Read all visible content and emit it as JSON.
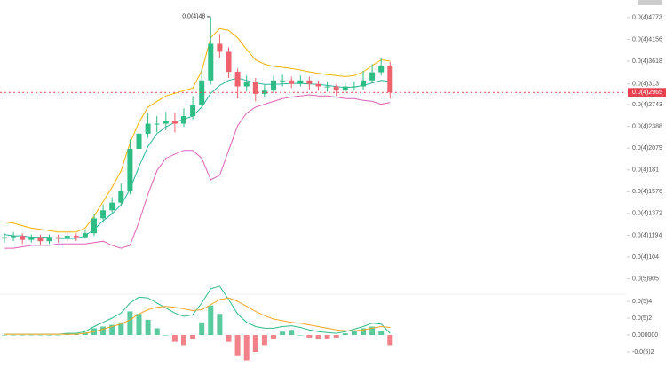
{
  "chart_data": [
    {
      "type": "candlestick",
      "log": true,
      "open": [
        1.17e-05,
        1.18e-05,
        1.19e-05,
        1.16e-05,
        1.18e-05,
        1.15e-05,
        1.18e-05,
        1.17e-05,
        1.19e-05,
        1.18e-05,
        1.21e-05,
        1.33e-05,
        1.4e-05,
        1.47e-05,
        1.58e-05,
        2.07e-05,
        2.28e-05,
        2.43e-05,
        2.43e-05,
        2.48e-05,
        2.43e-05,
        2.55e-05,
        2.73e-05,
        3.2e-05,
        4.04e-05,
        3.84e-05,
        3.38e-05,
        3.08e-05,
        3.17e-05,
        2.94e-05,
        3e-05,
        3.2e-05,
        3.2e-05,
        3.13e-05,
        3.2e-05,
        3.13e-05,
        3.08e-05,
        3.08e-05,
        3e-05,
        3.08e-05,
        3.08e-05,
        3.2e-05,
        3.37e-05,
        3.52e-05
      ],
      "high": [
        1.21e-05,
        1.22e-05,
        1.21e-05,
        1.2e-05,
        1.2e-05,
        1.2e-05,
        1.2e-05,
        1.22e-05,
        1.21e-05,
        1.24e-05,
        1.37e-05,
        1.45e-05,
        1.52e-05,
        1.66e-05,
        2.2e-05,
        2.4e-05,
        2.6e-05,
        2.55e-05,
        2.62e-05,
        2.6e-05,
        2.68e-05,
        2.9e-05,
        3.45e-05,
        4.8e-05,
        4.3e-05,
        3.95e-05,
        3.45e-05,
        3.3e-05,
        3.25e-05,
        3.12e-05,
        3.3e-05,
        3.32e-05,
        3.28e-05,
        3.3e-05,
        3.28e-05,
        3.2e-05,
        3.18e-05,
        3.12e-05,
        3.15e-05,
        3.18e-05,
        3.4e-05,
        3.55e-05,
        3.68e-05,
        3.6e-05
      ],
      "low": [
        1.14e-05,
        1.15e-05,
        1.13e-05,
        1.14e-05,
        1.12e-05,
        1.13e-05,
        1.14e-05,
        1.15e-05,
        1.15e-05,
        1.17e-05,
        1.19e-05,
        1.3e-05,
        1.37e-05,
        1.44e-05,
        1.55e-05,
        1.95e-05,
        2.22e-05,
        2.3e-05,
        2.33e-05,
        2.3e-05,
        2.38e-05,
        2.5e-05,
        2.68e-05,
        3.12e-05,
        3.7e-05,
        3.25e-05,
        2.85e-05,
        2.98e-05,
        2.8e-05,
        2.88e-05,
        2.95e-05,
        3.08e-05,
        3.05e-05,
        3.08e-05,
        3.02e-05,
        3e-05,
        2.98e-05,
        2.9e-05,
        2.95e-05,
        3e-05,
        3.02e-05,
        3.15e-05,
        3.3e-05,
        2.85e-05
      ],
      "close": [
        1.18e-05,
        1.19e-05,
        1.16e-05,
        1.18e-05,
        1.15e-05,
        1.18e-05,
        1.17e-05,
        1.19e-05,
        1.18e-05,
        1.21e-05,
        1.33e-05,
        1.4e-05,
        1.47e-05,
        1.58e-05,
        2.07e-05,
        2.28e-05,
        2.43e-05,
        2.43e-05,
        2.48e-05,
        2.43e-05,
        2.55e-05,
        2.73e-05,
        3.2e-05,
        4.04e-05,
        3.84e-05,
        3.38e-05,
        3.08e-05,
        3.17e-05,
        2.94e-05,
        3e-05,
        3.2e-05,
        3.2e-05,
        3.13e-05,
        3.2e-05,
        3.13e-05,
        3.08e-05,
        3.08e-05,
        3e-05,
        3.08e-05,
        3.08e-05,
        3.2e-05,
        3.37e-05,
        3.52e-05,
        2.965e-05
      ],
      "up_color": "#2ebd85",
      "down_color": "#f0616d",
      "series": [
        {
          "color": "#f5b400",
          "values": [
            1.3e-05,
            1.29e-05,
            1.27e-05,
            1.25e-05,
            1.24e-05,
            1.23e-05,
            1.22e-05,
            1.22e-05,
            1.22e-05,
            1.25e-05,
            1.35e-05,
            1.48e-05,
            1.62e-05,
            1.8e-05,
            2.15e-05,
            2.45e-05,
            2.7e-05,
            2.8e-05,
            2.9e-05,
            2.95e-05,
            3e-05,
            3.05e-05,
            3.4e-05,
            4.2e-05,
            4.45e-05,
            4.4e-05,
            4.2e-05,
            3.9e-05,
            3.65e-05,
            3.55e-05,
            3.5e-05,
            3.48e-05,
            3.45e-05,
            3.42e-05,
            3.38e-05,
            3.35e-05,
            3.32e-05,
            3.3e-05,
            3.28e-05,
            3.3e-05,
            3.38e-05,
            3.52e-05,
            3.65e-05,
            3.62e-05
          ]
        },
        {
          "color": "#2bb5a0",
          "values": [
            1.2e-05,
            1.19e-05,
            1.19e-05,
            1.18e-05,
            1.18e-05,
            1.18e-05,
            1.17e-05,
            1.17e-05,
            1.17e-05,
            1.19e-05,
            1.24e-05,
            1.31e-05,
            1.37e-05,
            1.45e-05,
            1.6e-05,
            1.85e-05,
            2.1e-05,
            2.28e-05,
            2.38e-05,
            2.45e-05,
            2.5e-05,
            2.55e-05,
            2.7e-05,
            2.95e-05,
            3.1e-05,
            3.2e-05,
            3.25e-05,
            3.2e-05,
            3.15e-05,
            3.12e-05,
            3.12e-05,
            3.13e-05,
            3.14e-05,
            3.14e-05,
            3.13e-05,
            3.12e-05,
            3.1e-05,
            3.08e-05,
            3.06e-05,
            3.07e-05,
            3.1e-05,
            3.15e-05,
            3.2e-05,
            3.18e-05
          ]
        },
        {
          "color": "#e060b8",
          "values": [
            1.1e-05,
            1.1e-05,
            1.11e-05,
            1.12e-05,
            1.12e-05,
            1.12e-05,
            1.13e-05,
            1.13e-05,
            1.13e-05,
            1.13e-05,
            1.14e-05,
            1.15e-05,
            1.12e-05,
            1.1e-05,
            1.12e-05,
            1.3e-05,
            1.55e-05,
            1.8e-05,
            1.95e-05,
            2e-05,
            2.05e-05,
            2.05e-05,
            1.95e-05,
            1.7e-05,
            1.75e-05,
            2.05e-05,
            2.4e-05,
            2.6e-05,
            2.7e-05,
            2.75e-05,
            2.8e-05,
            2.85e-05,
            2.88e-05,
            2.9e-05,
            2.92e-05,
            2.9e-05,
            2.9e-05,
            2.88e-05,
            2.85e-05,
            2.85e-05,
            2.82e-05,
            2.8e-05,
            2.75e-05,
            2.78e-05
          ]
        }
      ],
      "ylim": [
        8.3e-06,
        5.34e-05
      ],
      "yticks": [
        {
          "value": 4.773e-05,
          "label": "0.0(4)4773"
        },
        {
          "value": 4.156e-05,
          "label": "0.0(4)4156"
        },
        {
          "value": 3.618e-05,
          "label": "0.0(4)3618"
        },
        {
          "value": 3.13e-05,
          "label": "0.0(4)313"
        },
        {
          "value": 2.743e-05,
          "label": "0.0(4)2743"
        },
        {
          "value": 2.388e-05,
          "label": "0.0(4)2388"
        },
        {
          "value": 2.079e-05,
          "label": "0.0(4)2079"
        },
        {
          "value": 1.81e-05,
          "label": "0.0(4)181"
        },
        {
          "value": 1.576e-05,
          "label": "0.0(4)1576"
        },
        {
          "value": 1.372e-05,
          "label": "0.0(4)1372"
        },
        {
          "value": 1.194e-05,
          "label": "0.0(4)1194"
        },
        {
          "value": 1.04e-05,
          "label": "0.0(4)104"
        },
        {
          "value": 9.05e-06,
          "label": "0.0(5)905"
        }
      ],
      "last_price": {
        "value": 2.965e-05,
        "label": "0.0(4)2965",
        "color": "#e8414f"
      },
      "annotations": [
        {
          "value": 4.8e-05,
          "label": "0.0(4)48"
        }
      ]
    },
    {
      "type": "macd",
      "histogram": [
        0,
        0,
        0,
        0,
        0,
        0,
        0,
        1e-07,
        1e-07,
        3e-07,
        8e-07,
        1e-06,
        1.2e-06,
        1.5e-06,
        2.8e-06,
        2.5e-06,
        1.8e-06,
        8e-07,
        0,
        -8e-07,
        -1.2e-06,
        -5e-07,
        1.5e-06,
        3.5e-06,
        2.5e-06,
        -8e-07,
        -2.5e-06,
        -3e-06,
        -2e-06,
        -1.2e-06,
        -5e-07,
        4e-07,
        6e-07,
        0,
        -3e-07,
        -5e-07,
        -4e-07,
        -3e-07,
        2e-07,
        5e-07,
        8e-07,
        1e-06,
        5e-07,
        -1.2e-06
      ],
      "up_color": "#2ebd85",
      "down_color": "#f0616d",
      "series": [
        {
          "color": "#2ebd85",
          "values": [
            1e-07,
            1e-07,
            1e-07,
            1e-07,
            1e-07,
            1e-07,
            1e-07,
            2e-07,
            2e-07,
            4e-07,
            1e-06,
            1.5e-06,
            2e-06,
            2.6e-06,
            3.8e-06,
            4.5e-06,
            4.4e-06,
            3.8e-06,
            3.2e-06,
            2.6e-06,
            2.2e-06,
            2.4e-06,
            3.8e-06,
            5.5e-06,
            5.8e-06,
            4.2e-06,
            2.5e-06,
            1.5e-06,
            1e-06,
            8e-07,
            8e-07,
            1e-06,
            1.1e-06,
            9e-07,
            6e-07,
            4e-07,
            3e-07,
            2e-07,
            4e-07,
            7e-07,
            1e-06,
            1.4e-06,
            1.3e-06,
            2e-07
          ]
        },
        {
          "color": "#f5a623",
          "values": [
            1e-07,
            1e-07,
            1e-07,
            1e-07,
            1e-07,
            1e-07,
            1e-07,
            1e-07,
            1e-07,
            2e-07,
            4e-07,
            7e-07,
            1e-06,
            1.3e-06,
            1.8e-06,
            2.5e-06,
            3e-06,
            3.3e-06,
            3.4e-06,
            3.3e-06,
            3.1e-06,
            2.9e-06,
            3e-06,
            3.6e-06,
            4.2e-06,
            4.4e-06,
            4e-06,
            3.4e-06,
            2.8e-06,
            2.3e-06,
            1.9e-06,
            1.7e-06,
            1.5e-06,
            1.4e-06,
            1.2e-06,
            1e-06,
            8e-07,
            6e-07,
            5e-07,
            5e-07,
            6e-07,
            8e-07,
            1e-06,
            9e-07
          ]
        }
      ],
      "ylim": [
        -3.68e-06,
        4.53e-06
      ],
      "yticks": [
        {
          "value": 4e-06,
          "label": "0.0(5)4"
        },
        {
          "value": 2e-06,
          "label": "0.0(5)2"
        },
        {
          "value": 0,
          "label": "0.000000"
        },
        {
          "value": -2e-06,
          "label": "-0.0(5)2"
        }
      ]
    }
  ]
}
